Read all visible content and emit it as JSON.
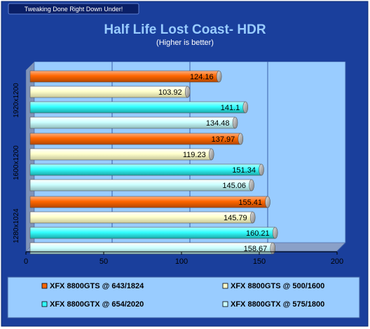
{
  "banner": "Tweaking Done Right Down Under!",
  "chart_data": {
    "type": "bar",
    "orientation": "horizontal",
    "title": "Half Life Lost Coast- HDR",
    "subtitle": "(Higher is better)",
    "categories": [
      "1920x1200",
      "1600x1200",
      "1280x1024"
    ],
    "series": [
      {
        "name": "XFX 8800GTS @ 643/1824",
        "color": "#ff6600",
        "values": [
          124.16,
          137.97,
          155.41
        ]
      },
      {
        "name": "XFX 8800GTS @ 500/1600",
        "color": "#ffffcc",
        "values": [
          103.92,
          119.23,
          145.79
        ]
      },
      {
        "name": "XFX 8800GTX @ 654/2020",
        "color": "#33ffff",
        "values": [
          141.1,
          151.34,
          160.21
        ]
      },
      {
        "name": "XFX 8800GTX @ 575/1800",
        "color": "#ccffff",
        "values": [
          134.48,
          145.06,
          158.67
        ]
      }
    ],
    "value_labels": [
      [
        "124.16",
        "137.97",
        "155.41"
      ],
      [
        "103.92",
        "119.23",
        "145.79"
      ],
      [
        "141.1",
        "151.34",
        "160.21"
      ],
      [
        "134.48",
        "145.06",
        "158.67"
      ]
    ],
    "x_ticks": [
      "0",
      "50",
      "100",
      "150",
      "200"
    ],
    "xlim": [
      0,
      200
    ],
    "grid": true,
    "legend_position": "bottom"
  },
  "colors": {
    "background": "#1a3f9c",
    "title": "#99ccff",
    "plot_area": "#99ccff",
    "text": "#000000"
  }
}
